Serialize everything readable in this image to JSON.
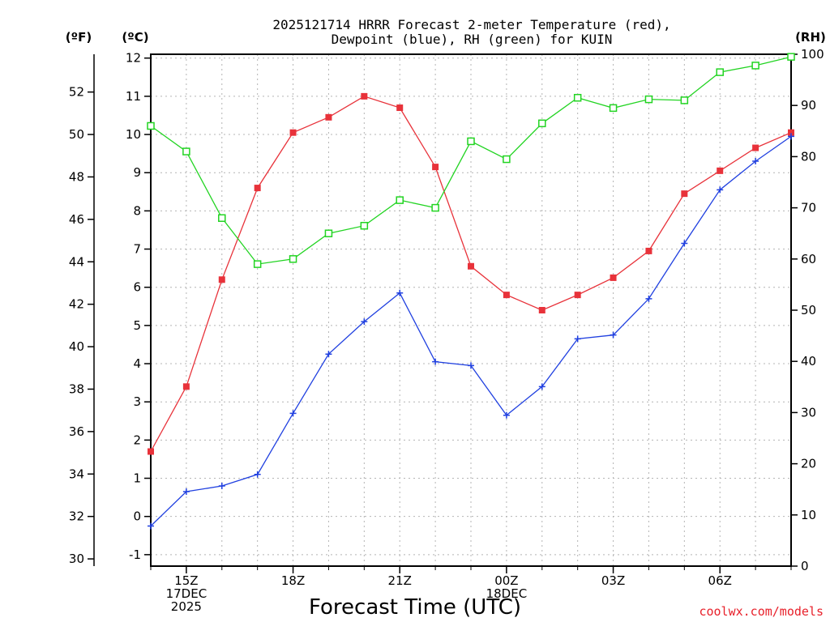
{
  "chart_data": {
    "type": "line",
    "title_line1": "2025121714 HRRR Forecast 2-meter Temperature (red),",
    "title_line2": "Dewpoint (blue), RH (green) for KUIN",
    "xlabel": "Forecast Time (UTC)",
    "credit": "coolwx.com/models",
    "units": {
      "left_f": "(ºF)",
      "left_c": "(ºC)",
      "right_rh": "(RH)"
    },
    "xlim": [
      14,
      32
    ],
    "ylim_c": [
      -1.3,
      12.1
    ],
    "ylim_rh": [
      0,
      100
    ],
    "x_ticks": [
      {
        "x": 15,
        "lines": [
          "15Z",
          "17DEC",
          "2025"
        ]
      },
      {
        "x": 18,
        "lines": [
          "18Z"
        ]
      },
      {
        "x": 21,
        "lines": [
          "21Z"
        ]
      },
      {
        "x": 24,
        "lines": [
          "00Z",
          "18DEC"
        ]
      },
      {
        "x": 27,
        "lines": [
          "03Z"
        ]
      },
      {
        "x": 30,
        "lines": [
          "06Z"
        ]
      }
    ],
    "celsius_ticks": [
      "-1",
      "0",
      "1",
      "2",
      "3",
      "4",
      "5",
      "6",
      "7",
      "8",
      "9",
      "10",
      "11",
      "12"
    ],
    "fahrenheit_ticks": [
      "30",
      "32",
      "34",
      "36",
      "38",
      "40",
      "42",
      "44",
      "46",
      "48",
      "50",
      "52"
    ],
    "rh_ticks": [
      "0",
      "10",
      "20",
      "30",
      "40",
      "50",
      "60",
      "70",
      "80",
      "90",
      "100"
    ],
    "x": [
      14,
      15,
      16,
      17,
      18,
      19,
      20,
      21,
      22,
      23,
      24,
      25,
      26,
      27,
      28,
      29,
      30,
      31,
      32
    ],
    "series": [
      {
        "name": "Temperature",
        "unit": "C",
        "color": "#e8323a",
        "marker": "filled-square",
        "values": [
          1.7,
          3.4,
          6.2,
          8.6,
          10.05,
          10.45,
          11.0,
          10.7,
          9.15,
          6.55,
          5.8,
          5.4,
          5.8,
          6.25,
          6.95,
          8.45,
          9.05,
          9.65,
          10.05
        ]
      },
      {
        "name": "Dewpoint",
        "unit": "C",
        "color": "#2040e0",
        "marker": "plus",
        "values": [
          -0.25,
          0.65,
          0.8,
          1.1,
          2.7,
          4.25,
          5.1,
          5.85,
          4.05,
          3.95,
          2.65,
          3.4,
          4.65,
          4.75,
          5.7,
          7.15,
          8.55,
          9.3,
          9.95
        ]
      },
      {
        "name": "RH",
        "unit": "%",
        "color": "#22d422",
        "marker": "open-square",
        "values": [
          86,
          81,
          68,
          59,
          60,
          65,
          66.5,
          71.5,
          70,
          83,
          79.5,
          86.5,
          91.5,
          89.5,
          91.2,
          91,
          96.5,
          97.8,
          99.5
        ]
      }
    ]
  }
}
